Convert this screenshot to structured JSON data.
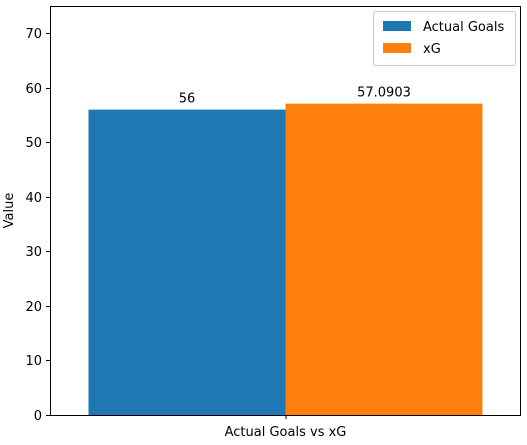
{
  "chart_data": {
    "type": "bar",
    "categories": [
      "Actual Goals vs xG"
    ],
    "series": [
      {
        "name": "Actual Goals",
        "values": [
          56
        ],
        "color": "#1f77b4",
        "data_labels": [
          "56"
        ]
      },
      {
        "name": "xG",
        "values": [
          57.0903
        ],
        "color": "#ff7f0e",
        "data_labels": [
          "57.0903"
        ]
      }
    ],
    "title": "",
    "xlabel": "",
    "ylabel": "Value",
    "ylim": [
      0,
      75
    ],
    "yticks": [
      0,
      10,
      20,
      30,
      40,
      50,
      60,
      70
    ],
    "grid": false,
    "legend_position": "top-right"
  }
}
